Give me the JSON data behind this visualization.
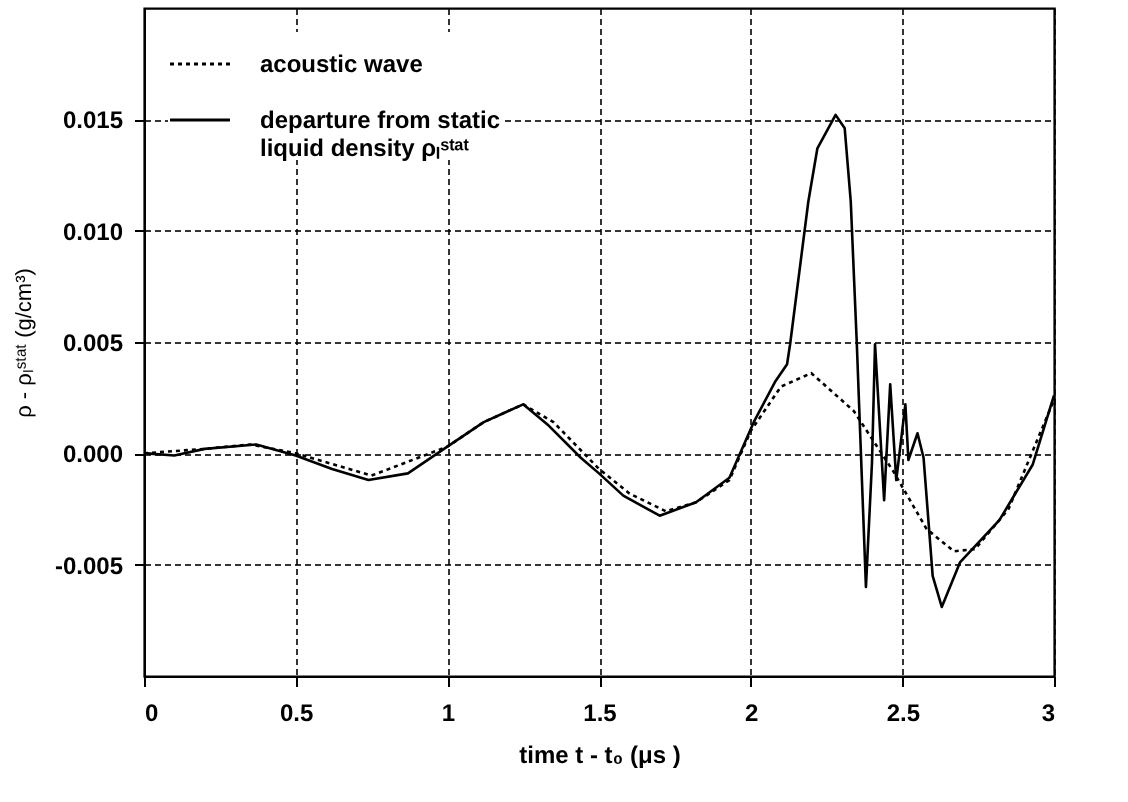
{
  "chart_data": {
    "type": "line",
    "xlabel": "time  t - t₀  (μs )",
    "ylabel": "ρ - ρₗˢᵗᵃᵗ  (g/cm³)",
    "xlim": [
      0,
      3
    ],
    "ylim": [
      -0.01,
      0.02
    ],
    "xticks": [
      0,
      0.5,
      1,
      1.5,
      2,
      2.5,
      3
    ],
    "yticks": [
      {
        "value": -0.005,
        "label": "-0.005"
      },
      {
        "value": 0,
        "label": "0.000"
      },
      {
        "value": 0.005,
        "label": "0.005"
      },
      {
        "value": 0.01,
        "label": "0.010"
      },
      {
        "value": 0.015,
        "label": "0.015"
      }
    ],
    "grid": true,
    "legend": "top left",
    "marker": "none",
    "series": [
      {
        "name": "acoustic wave",
        "color": "#000000",
        "line_style": "dotted",
        "x": [
          0,
          0.2,
          0.35,
          0.5,
          0.75,
          1.0,
          1.12,
          1.25,
          1.35,
          1.5,
          1.6,
          1.72,
          1.82,
          1.93,
          2.0,
          2.1,
          2.2,
          2.34,
          2.47,
          2.58,
          2.67,
          2.74,
          2.85,
          3.0
        ],
        "values": [
          0,
          0.0002,
          0.0004,
          0,
          -0.001,
          0.0003,
          0.0014,
          0.0022,
          0.0014,
          -0.0007,
          -0.0018,
          -0.0026,
          -0.0022,
          -0.0012,
          0.001,
          0.003,
          0.0036,
          0.0019,
          -0.0008,
          -0.0034,
          -0.0044,
          -0.0043,
          -0.0025,
          0.0024
        ]
      },
      {
        "name": "departure from static liquid density ρₗˢᵗᵃᵗ",
        "color": "#000000",
        "line_style": "solid",
        "x": [
          0.01,
          0.1,
          0.2,
          0.37,
          0.5,
          0.62,
          0.74,
          0.87,
          1.0,
          1.12,
          1.25,
          1.33,
          1.44,
          1.5,
          1.58,
          1.7,
          1.82,
          1.93,
          2.01,
          2.08,
          2.12,
          2.13,
          2.19,
          2.22,
          2.28,
          2.31,
          2.33,
          2.35,
          2.38,
          2.4,
          2.41,
          2.44,
          2.46,
          2.48,
          2.51,
          2.52,
          2.55,
          2.57,
          2.6,
          2.63,
          2.69,
          2.82,
          2.93,
          3.0
        ],
        "values": [
          0,
          -0.0001,
          0.0002,
          0.0004,
          -0.0001,
          -0.0007,
          -0.0012,
          -0.0009,
          0.0003,
          0.0014,
          0.0022,
          0.0013,
          -0.0002,
          -0.0009,
          -0.0019,
          -0.0028,
          -0.0022,
          -0.0011,
          0.0014,
          0.0032,
          0.004,
          0.0049,
          0.0113,
          0.0137,
          0.0152,
          0.0146,
          0.0113,
          0.0049,
          -0.006,
          -0.0004,
          0.0049,
          -0.0021,
          0.0031,
          -0.0012,
          0.0022,
          -0.0003,
          0.0009,
          -0.0002,
          -0.0055,
          -0.0069,
          -0.0049,
          -0.003,
          -0.0005,
          0.0026
        ]
      }
    ]
  }
}
